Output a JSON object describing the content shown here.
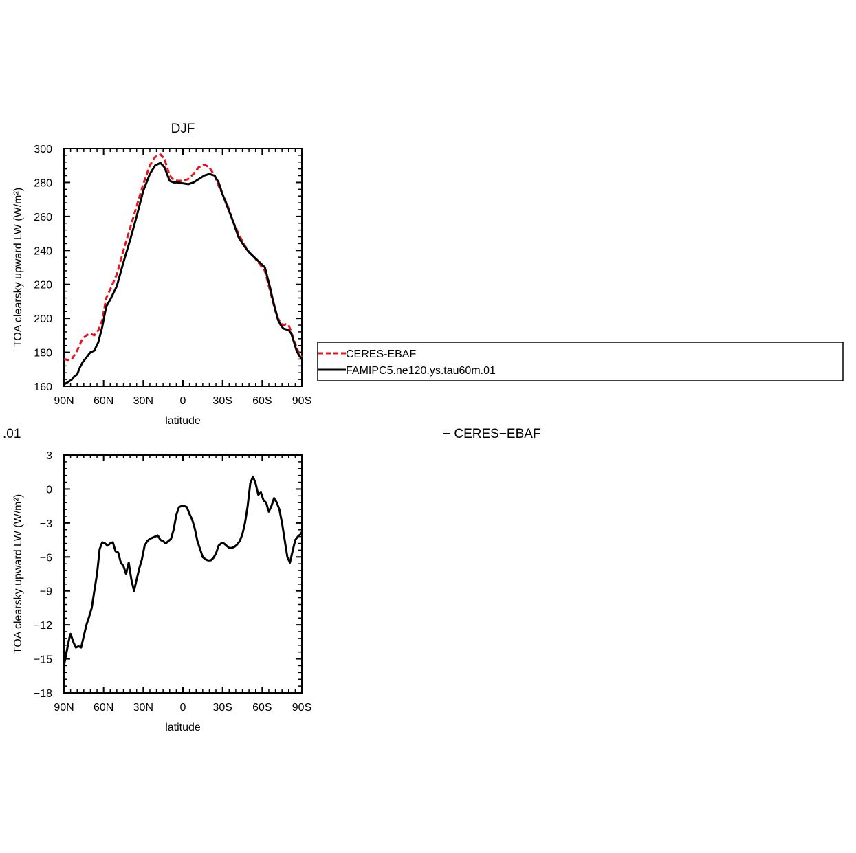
{
  "chart_data": [
    {
      "type": "line",
      "title": "DJF",
      "xlabel": "latitude",
      "ylabel": "TOA clearsky upward LW (W/m²)",
      "xlim": [
        90,
        -90
      ],
      "ylim": [
        160,
        300
      ],
      "xticks": [
        90,
        60,
        30,
        0,
        -30,
        -60,
        -90
      ],
      "xtick_labels": [
        "90N",
        "60N",
        "30N",
        "0",
        "30S",
        "60S",
        "90S"
      ],
      "yticks": [
        160,
        180,
        200,
        220,
        240,
        260,
        280,
        300
      ],
      "ytick_labels": [
        "160",
        "180",
        "200",
        "220",
        "240",
        "260",
        "280",
        "300"
      ],
      "legend_position": "right",
      "series": [
        {
          "name": "CERES-EBAF",
          "color": "#e8141c",
          "dash": "dashed",
          "x": [
            90,
            87,
            84,
            80,
            76,
            73,
            70,
            67,
            64,
            61,
            58,
            55,
            50,
            45,
            40,
            35,
            30,
            25,
            21,
            17,
            14,
            12,
            10,
            7,
            4,
            0,
            -4,
            -8,
            -12,
            -16,
            -20,
            -24,
            -27,
            -30,
            -34,
            -38,
            -42,
            -46,
            -50,
            -54,
            -58,
            -62,
            -66,
            -68,
            -70,
            -72,
            -74,
            -76,
            -78,
            -80,
            -82,
            -84,
            -86,
            -88,
            -90
          ],
          "y": [
            176,
            175.5,
            176,
            181,
            188,
            190,
            191,
            190,
            193,
            199,
            212,
            217,
            226,
            240,
            253,
            266,
            279,
            290,
            295,
            296.5,
            294,
            289,
            284,
            281.5,
            281,
            281,
            282,
            285,
            289,
            290.5,
            289,
            284,
            278,
            273,
            266,
            257,
            250,
            244,
            239,
            236,
            232,
            228,
            216,
            210,
            204,
            200,
            197,
            196,
            196.5,
            196,
            192,
            187,
            183,
            179,
            177
          ]
        },
        {
          "name": "FAMIPC5.ne120.ys.tau60m.01",
          "color": "#000000",
          "dash": "solid",
          "x": [
            90,
            88,
            86,
            84,
            82,
            80,
            78,
            76,
            73,
            70,
            67,
            64,
            61,
            58,
            55,
            50,
            45,
            40,
            35,
            30,
            25,
            21,
            17,
            14,
            12,
            10,
            7,
            4,
            0,
            -4,
            -8,
            -12,
            -16,
            -20,
            -24,
            -27,
            -30,
            -34,
            -38,
            -42,
            -46,
            -50,
            -54,
            -58,
            -62,
            -66,
            -68,
            -70,
            -72,
            -74,
            -76,
            -78,
            -80,
            -82,
            -84,
            -86,
            -88,
            -90
          ],
          "y": [
            161,
            162,
            163,
            164,
            166,
            167,
            171,
            174,
            177,
            180,
            181,
            186,
            195,
            207,
            211,
            219,
            233,
            246,
            260,
            275,
            285,
            290,
            291.5,
            289,
            285,
            281,
            280,
            280,
            279.5,
            279,
            280,
            282,
            284,
            285,
            284,
            280,
            273,
            265,
            257,
            248,
            243,
            239,
            236,
            233,
            230,
            218,
            211,
            205,
            199,
            196,
            194,
            193.5,
            193,
            191,
            186,
            181,
            178,
            176
          ]
        }
      ]
    },
    {
      "type": "line",
      "title": "",
      "xlabel": "latitude",
      "ylabel": "TOA clearsky upward LW (W/m²)",
      "xlim": [
        90,
        -90
      ],
      "ylim": [
        -18,
        3
      ],
      "xticks": [
        90,
        60,
        30,
        0,
        -30,
        -60,
        -90
      ],
      "xtick_labels": [
        "90N",
        "60N",
        "30N",
        "0",
        "30S",
        "60S",
        "90S"
      ],
      "yticks": [
        -18,
        -15,
        -12,
        -9,
        -6,
        -3,
        0,
        3
      ],
      "ytick_labels": [
        "−18",
        "−15",
        "−12",
        "−9",
        "−6",
        "−3",
        "0",
        "3"
      ],
      "series": [
        {
          "name": "",
          "color": "#000000",
          "dash": "solid",
          "x": [
            90,
            88,
            86,
            85,
            83,
            81,
            79,
            77,
            75,
            73,
            71,
            69,
            67,
            65,
            63,
            61,
            59,
            57,
            55,
            53,
            51,
            49,
            47,
            45,
            43,
            41,
            39,
            37,
            35,
            33,
            31,
            29,
            27,
            25,
            23,
            21,
            19,
            17,
            15,
            13,
            11,
            9,
            7,
            5,
            3,
            1,
            -1,
            -3,
            -5,
            -7,
            -9,
            -11,
            -13,
            -15,
            -17,
            -19,
            -21,
            -23,
            -25,
            -27,
            -29,
            -31,
            -33,
            -35,
            -37,
            -39,
            -41,
            -43,
            -45,
            -47,
            -49,
            -51,
            -53,
            -55,
            -57,
            -59,
            -61,
            -63,
            -65,
            -67,
            -69,
            -71,
            -73,
            -75,
            -77,
            -79,
            -81,
            -83,
            -85,
            -87,
            -89,
            -90
          ],
          "y": [
            -15.6,
            -14.4,
            -13.2,
            -12.8,
            -13.5,
            -14,
            -13.9,
            -14,
            -13,
            -12,
            -11.3,
            -10.5,
            -9.0,
            -7.5,
            -5.3,
            -4.7,
            -4.8,
            -5.0,
            -4.8,
            -4.7,
            -5.5,
            -5.6,
            -6.5,
            -6.8,
            -7.5,
            -6.5,
            -8.0,
            -9.0,
            -8.0,
            -7.0,
            -6.2,
            -5.0,
            -4.6,
            -4.4,
            -4.3,
            -4.2,
            -4.1,
            -4.5,
            -4.6,
            -4.8,
            -4.6,
            -4.4,
            -3.6,
            -2.3,
            -1.6,
            -1.5,
            -1.5,
            -1.6,
            -2.2,
            -2.7,
            -3.5,
            -4.6,
            -5.3,
            -6.0,
            -6.2,
            -6.3,
            -6.3,
            -6.1,
            -5.7,
            -5.0,
            -4.8,
            -4.8,
            -5.0,
            -5.2,
            -5.2,
            -5.1,
            -4.9,
            -4.6,
            -4.0,
            -3.0,
            -1.5,
            0.5,
            1.1,
            0.5,
            -0.5,
            -0.3,
            -1.0,
            -1.2,
            -2.0,
            -1.5,
            -0.8,
            -1.2,
            -1.8,
            -3.0,
            -4.5,
            -6.0,
            -6.5,
            -5.5,
            -4.5,
            -4.2,
            -4.0,
            -3.8
          ]
        }
      ]
    }
  ],
  "legend": {
    "entries": [
      {
        "label": "CERES-EBAF",
        "color": "#e8141c",
        "dash": "dashed"
      },
      {
        "label": "FAMIPC5.ne120.ys.tau60m.01",
        "color": "#000000",
        "dash": "solid"
      }
    ]
  },
  "fragments": {
    "left_clipped": ".01",
    "right_clipped": "− CERES−EBAF"
  }
}
